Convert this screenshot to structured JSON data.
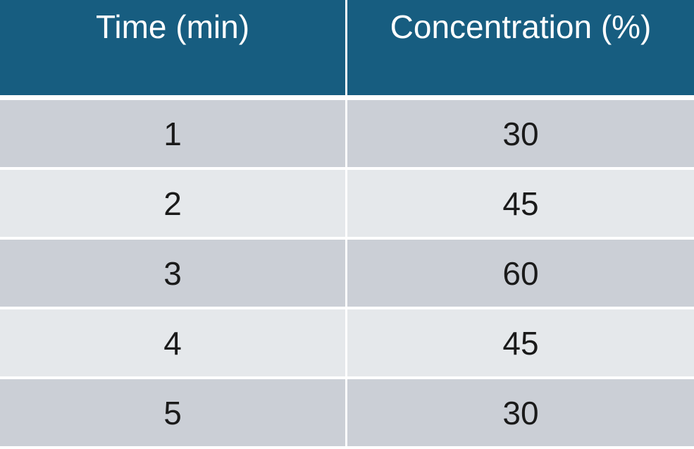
{
  "colors": {
    "header_bg": "#175d80",
    "row_dark": "#cbcfd6",
    "row_light": "#e5e8eb",
    "text_dark": "#1a1a1a",
    "header_text": "#ffffff"
  },
  "chart_data": {
    "type": "table",
    "columns": [
      "Time (min)",
      "Concentration (%)"
    ],
    "rows": [
      [
        "1",
        "30"
      ],
      [
        "2",
        "45"
      ],
      [
        "3",
        "60"
      ],
      [
        "4",
        "45"
      ],
      [
        "5",
        "30"
      ]
    ]
  }
}
